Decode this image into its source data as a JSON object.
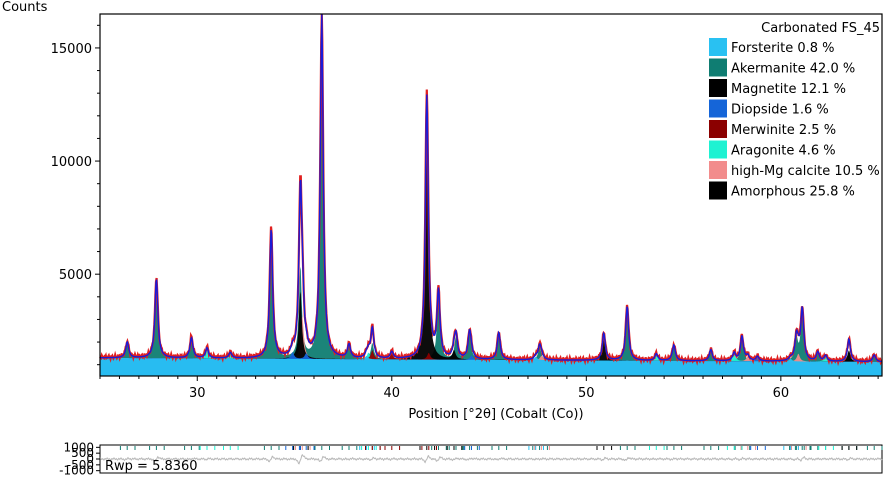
{
  "chart_data": {
    "type": "line",
    "ylabel": "Counts",
    "xlabel": "Position [°2θ] (Cobalt (Co))",
    "xlim": [
      25.0,
      65.2
    ],
    "ylim": [
      500,
      16500
    ],
    "x_ticks": [
      "30",
      "40",
      "50",
      "60"
    ],
    "x_tick_values": [
      30,
      40,
      50,
      60
    ],
    "y_ticks": [
      "5000",
      "10000",
      "15000"
    ],
    "y_tick_values": [
      5000,
      10000,
      15000
    ],
    "baseline": 1300,
    "legend": {
      "title": "Carbonated FS_45",
      "placement": "top-right",
      "entries": [
        {
          "label": "Forsterite 0.8 %",
          "color": "#29c1f2"
        },
        {
          "label": "Akermanite 42.0 %",
          "color": "#0f7d72"
        },
        {
          "label": "Magnetite 12.1 %",
          "color": "#000000"
        },
        {
          "label": "Diopside 1.6 %",
          "color": "#1565d8"
        },
        {
          "label": "Merwinite  2.5 %",
          "color": "#8b0000"
        },
        {
          "label": "Aragonite 4.6 %",
          "color": "#1ef2d2"
        },
        {
          "label": "high-Mg calcite 10.5 %",
          "color": "#f28c8c"
        },
        {
          "label": "Amorphous 25.8 %",
          "color": "#000000"
        }
      ]
    },
    "series": [
      {
        "name": "Akermanite 42.0 %",
        "color": "#0f7d72",
        "peaks": [
          [
            26.4,
            700
          ],
          [
            27.9,
            3500
          ],
          [
            29.7,
            900
          ],
          [
            33.8,
            5700
          ],
          [
            35.3,
            4000
          ],
          [
            36.4,
            15200
          ],
          [
            37.8,
            600
          ],
          [
            39.0,
            700
          ],
          [
            42.4,
            2900
          ],
          [
            43.3,
            1000
          ],
          [
            44.0,
            1200
          ],
          [
            45.5,
            1200
          ],
          [
            47.6,
            600
          ],
          [
            52.1,
            2400
          ],
          [
            54.5,
            700
          ],
          [
            56.4,
            500
          ],
          [
            58.0,
            1100
          ],
          [
            60.8,
            1000
          ],
          [
            61.1,
            2300
          ],
          [
            61.9,
            400
          ],
          [
            63.5,
            500
          ],
          [
            64.8,
            300
          ]
        ]
      },
      {
        "name": "high-Mg calcite 10.5 %",
        "color": "#f28c8c",
        "peaks": [
          [
            35.4,
            1900
          ],
          [
            39.0,
            250
          ],
          [
            47.7,
            200
          ],
          [
            58.3,
            220
          ],
          [
            60.9,
            350
          ]
        ]
      },
      {
        "name": "Aragonite 4.6 %",
        "color": "#1ef2d2",
        "peaks": [
          [
            30.5,
            450
          ],
          [
            31.7,
            250
          ],
          [
            38.8,
            300
          ],
          [
            53.6,
            300
          ],
          [
            57.6,
            350
          ],
          [
            62.3,
            250
          ]
        ]
      },
      {
        "name": "Magnetite 12.1 %",
        "color": "#000000",
        "peaks": [
          [
            35.3,
            3000
          ],
          [
            41.8,
            11500
          ],
          [
            43.2,
            400
          ],
          [
            50.9,
            1200
          ],
          [
            63.5,
            500
          ]
        ]
      },
      {
        "name": "Merwinite  2.5 %",
        "color": "#8b0000",
        "peaks": [
          [
            39.0,
            400
          ],
          [
            40.0,
            300
          ],
          [
            41.9,
            300
          ]
        ]
      },
      {
        "name": "Diopside 1.6 %",
        "color": "#1565d8",
        "peaks": [
          [
            34.9,
            300
          ],
          [
            35.6,
            250
          ],
          [
            44.1,
            200
          ],
          [
            58.8,
            200
          ]
        ]
      },
      {
        "name": "Forsterite 0.8 %",
        "color": "#29c1f2",
        "peaks": [
          [
            38.7,
            150
          ],
          [
            47.4,
            150
          ],
          [
            60.5,
            120
          ]
        ]
      }
    ],
    "observed_color": "#e02020",
    "calculated_color": "#1a1ad8",
    "residual": {
      "y_ticks": [
        "1000",
        "500",
        "0",
        "-500",
        "-1000"
      ],
      "y_tick_values": [
        1000,
        500,
        0,
        -500,
        -1000
      ],
      "ylim": [
        -1200,
        1200
      ],
      "label": "Rwp = 5.8360",
      "color": "#b8b8b8"
    }
  }
}
